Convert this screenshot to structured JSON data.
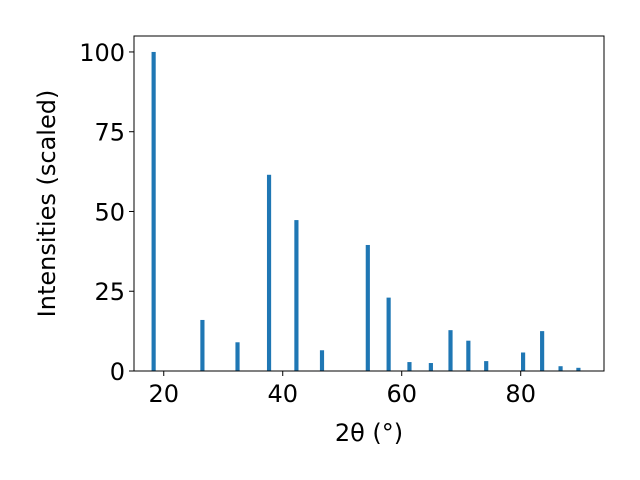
{
  "chart_data": {
    "type": "bar",
    "title": "",
    "xlabel": "2θ (°)",
    "ylabel": "Intensities (scaled)",
    "xlim": [
      15,
      94
    ],
    "ylim": [
      0,
      105
    ],
    "xticks": [
      20,
      40,
      60,
      80
    ],
    "yticks": [
      0,
      25,
      50,
      75,
      100
    ],
    "bar_width": 0.7,
    "grid": false,
    "legend": "none",
    "color": "#1f77b4",
    "x": [
      18.3,
      26.5,
      32.4,
      37.7,
      42.3,
      46.6,
      54.3,
      57.8,
      61.3,
      64.9,
      68.2,
      71.2,
      74.2,
      80.4,
      83.6,
      86.7,
      89.7
    ],
    "values": [
      100,
      16,
      9,
      61.5,
      47.3,
      6.5,
      39.5,
      23,
      2.8,
      2.5,
      12.8,
      9.5,
      3.1,
      5.8,
      12.5,
      1.5,
      1.0
    ]
  }
}
